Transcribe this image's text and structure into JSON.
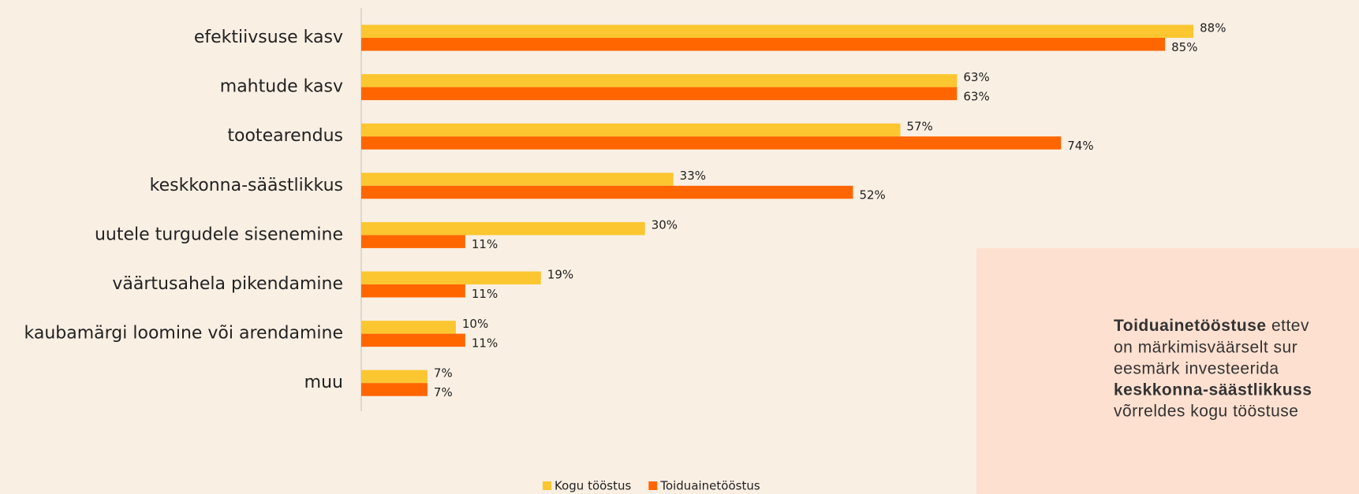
{
  "chart_data": {
    "type": "hbar",
    "categories": [
      "efektiivsuse kasv",
      "mahtude kasv",
      "tootearendus",
      "keskkonna-säästlikkus",
      "uutele turgudele sisenemine",
      "väärtusahela pikendamine",
      "kaubamärgi loomine või arendamine",
      "muu"
    ],
    "series": [
      {
        "name": "Kogu tööstus",
        "color": "#fcc630",
        "values": [
          88,
          63,
          57,
          33,
          30,
          19,
          10,
          7
        ],
        "value_labels": [
          "88%",
          "63%",
          "57%",
          "33%",
          "30%",
          "19%",
          "10%",
          "7%"
        ]
      },
      {
        "name": "Toiduainetööstus",
        "color": "#ff6600",
        "values": [
          85,
          63,
          74,
          52,
          11,
          11,
          11,
          7
        ],
        "value_labels": [
          "85%",
          "63%",
          "74%",
          "52%",
          "11%",
          "11%",
          "11%",
          "7%"
        ]
      }
    ],
    "xlim": [
      0,
      100
    ],
    "legend": "bottom"
  },
  "annotation": [
    [
      "Toiduainetööstuse",
      " ettev"
    ],
    [
      "on märkimisväärselt sur"
    ],
    [
      "eesmärk investeerida"
    ],
    [
      "keskkonna-säästlikkuss"
    ],
    [
      "võrreldes kogu tööstuse"
    ]
  ]
}
